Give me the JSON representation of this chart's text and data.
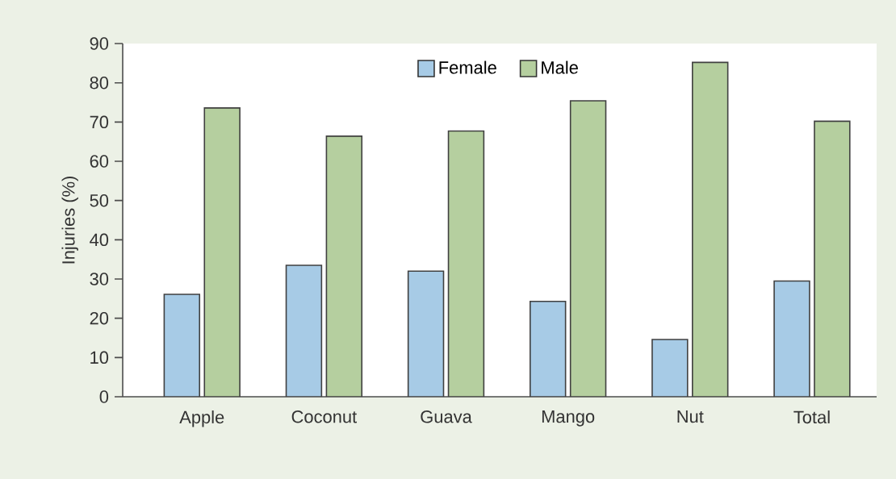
{
  "chart_data": {
    "type": "bar",
    "ylabel": "Injuries (%)",
    "categories": [
      "Apple",
      "Coconut",
      "Guava",
      "Mango",
      "Nut",
      "Total"
    ],
    "series": [
      {
        "name": "Female",
        "color": "#a7cbe6",
        "values": [
          26.1,
          33.5,
          32.0,
          24.3,
          14.6,
          29.5
        ]
      },
      {
        "name": "Male",
        "color": "#b5cf9f",
        "values": [
          73.6,
          66.4,
          67.7,
          75.4,
          85.2,
          70.2
        ]
      }
    ],
    "ylim": [
      0,
      90
    ],
    "yticks": [
      0,
      10,
      20,
      30,
      40,
      50,
      60,
      70,
      80,
      90
    ],
    "legend": "top",
    "grid": false
  }
}
